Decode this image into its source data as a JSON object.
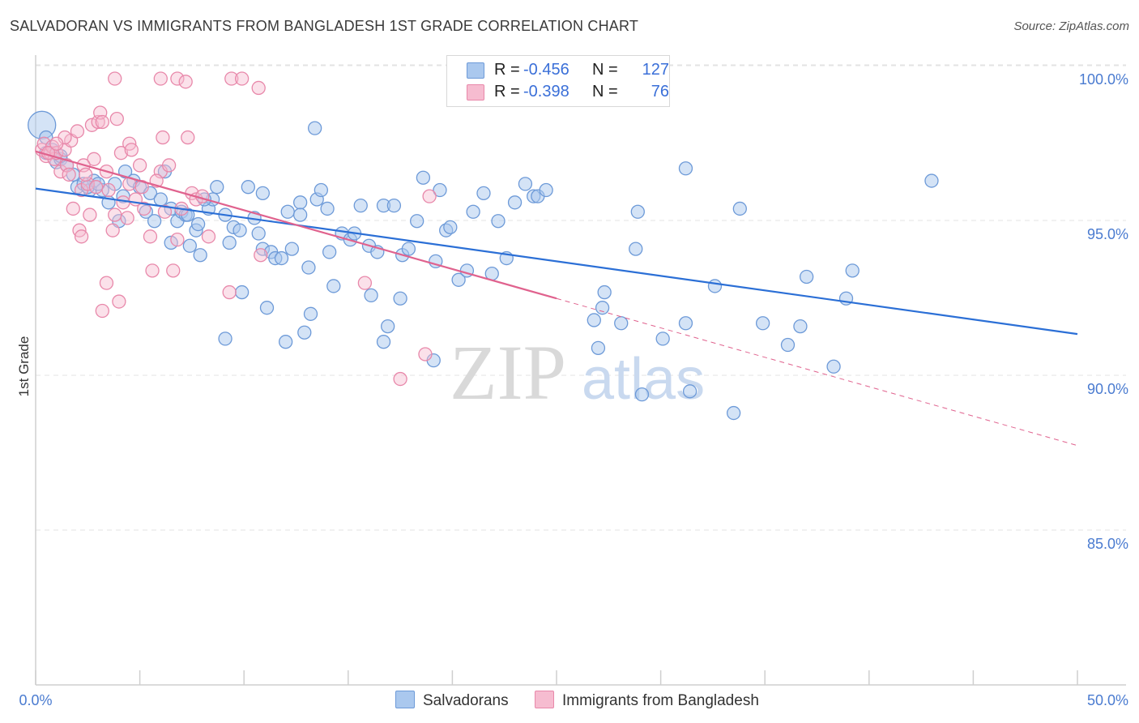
{
  "title": "SALVADORAN VS IMMIGRANTS FROM BANGLADESH 1ST GRADE CORRELATION CHART",
  "source": "Source: ZipAtlas.com",
  "watermark": {
    "part1": "ZIP",
    "part2": "atlas"
  },
  "legend": {
    "rows": [
      {
        "r_label": "R =",
        "r_value": "-0.456",
        "n_label": "N =",
        "n_value": "127"
      },
      {
        "r_label": "R =",
        "r_value": "-0.398",
        "n_label": "N =",
        "n_value": "76"
      }
    ]
  },
  "bottom_legend": {
    "series1": "Salvadorans",
    "series2": "Immigrants from Bangladesh"
  },
  "colors": {
    "blue_fill": "#aac8ee",
    "blue_stroke": "#6d9ad8",
    "blue_line": "#2b6fd6",
    "pink_fill": "#f6bcd0",
    "pink_stroke": "#e888aa",
    "pink_line": "#e0628e",
    "tick_text": "#4a7bd0",
    "grid": "#e3e3e3"
  },
  "chart_data": {
    "type": "scatter",
    "title": "SALVADORAN VS IMMIGRANTS FROM BANGLADESH 1ST GRADE CORRELATION CHART",
    "xlabel": "",
    "ylabel": "1st Grade",
    "xlim": [
      0,
      50
    ],
    "ylim": [
      80.5,
      101
    ],
    "x_tick_labels": [
      "0.0%",
      "50.0%"
    ],
    "y_ticks": [
      85,
      90,
      95,
      100
    ],
    "y_tick_labels": [
      "85.0%",
      "90.0%",
      "95.0%",
      "100.0%"
    ],
    "grid": true,
    "series": [
      {
        "name": "Salvadorans",
        "r": -0.456,
        "n": 127,
        "trend": {
          "x": [
            0,
            50
          ],
          "y": [
            96.45,
            91.75
          ]
        },
        "points": [
          [
            0.3,
            98.5
          ],
          [
            0.5,
            98.1
          ],
          [
            0.8,
            97.7
          ],
          [
            1.0,
            97.3
          ],
          [
            1.2,
            97.4
          ],
          [
            1.5,
            97.2
          ],
          [
            1.8,
            96.9
          ],
          [
            2.0,
            96.5
          ],
          [
            2.3,
            96.6
          ],
          [
            2.6,
            96.4
          ],
          [
            2.8,
            96.7
          ],
          [
            3.2,
            96.4
          ],
          [
            3.5,
            96.0
          ],
          [
            3.8,
            96.6
          ],
          [
            4.0,
            95.4
          ],
          [
            4.2,
            96.2
          ],
          [
            4.3,
            97.0
          ],
          [
            4.7,
            96.7
          ],
          [
            5.0,
            96.5
          ],
          [
            5.3,
            95.7
          ],
          [
            5.5,
            96.3
          ],
          [
            5.7,
            95.4
          ],
          [
            6.0,
            96.1
          ],
          [
            6.2,
            97.0
          ],
          [
            6.5,
            94.7
          ],
          [
            6.5,
            95.8
          ],
          [
            6.8,
            95.4
          ],
          [
            7.0,
            95.7
          ],
          [
            7.2,
            95.6
          ],
          [
            7.4,
            94.6
          ],
          [
            7.7,
            95.1
          ],
          [
            7.8,
            95.3
          ],
          [
            7.9,
            94.3
          ],
          [
            8.3,
            95.8
          ],
          [
            8.5,
            96.1
          ],
          [
            8.7,
            96.5
          ],
          [
            9.1,
            95.6
          ],
          [
            9.3,
            94.7
          ],
          [
            9.5,
            95.2
          ],
          [
            9.8,
            95.1
          ],
          [
            10.2,
            96.5
          ],
          [
            10.5,
            95.5
          ],
          [
            10.7,
            95.0
          ],
          [
            10.9,
            94.5
          ],
          [
            11.3,
            94.4
          ],
          [
            11.5,
            94.2
          ],
          [
            11.8,
            94.2
          ],
          [
            12.1,
            95.7
          ],
          [
            12.3,
            94.5
          ],
          [
            12.7,
            96.0
          ],
          [
            13.1,
            93.9
          ],
          [
            13.5,
            96.1
          ],
          [
            13.7,
            96.4
          ],
          [
            14.0,
            95.8
          ],
          [
            14.3,
            93.3
          ],
          [
            14.7,
            95.0
          ],
          [
            15.1,
            94.8
          ],
          [
            15.6,
            95.9
          ],
          [
            16.0,
            94.6
          ],
          [
            16.4,
            94.4
          ],
          [
            16.7,
            95.9
          ],
          [
            17.2,
            95.9
          ],
          [
            17.6,
            94.3
          ],
          [
            17.9,
            94.5
          ],
          [
            18.3,
            95.4
          ],
          [
            18.6,
            96.8
          ],
          [
            19.2,
            94.1
          ],
          [
            19.4,
            96.4
          ],
          [
            19.7,
            95.1
          ],
          [
            19.9,
            95.2
          ],
          [
            20.3,
            93.5
          ],
          [
            20.7,
            93.8
          ],
          [
            21.0,
            95.7
          ],
          [
            21.5,
            96.3
          ],
          [
            21.9,
            93.7
          ],
          [
            22.2,
            95.4
          ],
          [
            22.6,
            94.2
          ],
          [
            23.0,
            96.0
          ],
          [
            23.5,
            96.6
          ],
          [
            23.9,
            96.2
          ],
          [
            24.1,
            96.2
          ],
          [
            24.5,
            96.4
          ],
          [
            0.5,
            97.6
          ],
          [
            1.2,
            97.5
          ],
          [
            2.5,
            96.5
          ],
          [
            3.0,
            96.6
          ],
          [
            27.3,
            93.1
          ],
          [
            26.8,
            92.2
          ],
          [
            27.2,
            92.6
          ],
          [
            28.1,
            92.1
          ],
          [
            27.0,
            91.3
          ],
          [
            28.8,
            94.5
          ],
          [
            28.9,
            95.7
          ],
          [
            29.1,
            89.8
          ],
          [
            30.1,
            91.6
          ],
          [
            31.2,
            97.1
          ],
          [
            31.4,
            89.9
          ],
          [
            31.2,
            92.1
          ],
          [
            32.6,
            93.3
          ],
          [
            33.8,
            95.8
          ],
          [
            33.5,
            89.2
          ],
          [
            34.9,
            92.1
          ],
          [
            36.1,
            91.4
          ],
          [
            36.7,
            92.0
          ],
          [
            37.0,
            93.6
          ],
          [
            38.3,
            90.7
          ],
          [
            38.9,
            92.9
          ],
          [
            39.2,
            93.8
          ],
          [
            43.0,
            96.7
          ],
          [
            12.7,
            95.6
          ],
          [
            13.4,
            98.4
          ],
          [
            14.1,
            94.4
          ],
          [
            15.3,
            95.0
          ],
          [
            10.9,
            96.3
          ],
          [
            9.9,
            93.1
          ],
          [
            11.1,
            92.6
          ],
          [
            12.0,
            91.5
          ],
          [
            12.9,
            91.8
          ],
          [
            13.2,
            92.4
          ],
          [
            16.1,
            93.0
          ],
          [
            16.9,
            92.0
          ],
          [
            16.7,
            91.5
          ],
          [
            17.5,
            92.9
          ],
          [
            19.1,
            90.9
          ],
          [
            9.1,
            91.6
          ],
          [
            8.1,
            96.1
          ],
          [
            7.3,
            95.6
          ]
        ]
      },
      {
        "name": "Immigrants from Bangladesh",
        "r": -0.398,
        "n": 76,
        "trend": {
          "x": [
            0,
            25
          ],
          "y": [
            97.65,
            92.9
          ]
        },
        "trend_dashed": {
          "x": [
            25,
            50
          ],
          "y": [
            92.9,
            88.15
          ]
        },
        "points": [
          [
            0.3,
            97.7
          ],
          [
            0.4,
            97.9
          ],
          [
            0.5,
            97.5
          ],
          [
            0.7,
            97.6
          ],
          [
            0.8,
            97.8
          ],
          [
            0.9,
            97.4
          ],
          [
            1.0,
            97.6
          ],
          [
            1.2,
            97.0
          ],
          [
            1.4,
            97.7
          ],
          [
            1.5,
            97.2
          ],
          [
            1.7,
            98.0
          ],
          [
            2.0,
            98.3
          ],
          [
            2.2,
            96.4
          ],
          [
            2.5,
            96.6
          ],
          [
            2.6,
            95.6
          ],
          [
            2.7,
            98.5
          ],
          [
            2.9,
            96.5
          ],
          [
            3.0,
            98.6
          ],
          [
            3.1,
            98.9
          ],
          [
            3.2,
            98.6
          ],
          [
            3.4,
            97.0
          ],
          [
            3.5,
            96.4
          ],
          [
            3.7,
            95.1
          ],
          [
            3.8,
            95.6
          ],
          [
            3.9,
            98.7
          ],
          [
            4.1,
            97.6
          ],
          [
            4.2,
            96.0
          ],
          [
            4.4,
            95.5
          ],
          [
            4.5,
            97.9
          ],
          [
            4.6,
            97.7
          ],
          [
            4.8,
            96.1
          ],
          [
            5.0,
            97.2
          ],
          [
            5.2,
            95.8
          ],
          [
            5.5,
            94.9
          ],
          [
            5.6,
            93.8
          ],
          [
            6.0,
            97.0
          ],
          [
            6.1,
            98.1
          ],
          [
            6.2,
            95.7
          ],
          [
            6.4,
            97.2
          ],
          [
            6.6,
            93.8
          ],
          [
            6.8,
            94.8
          ],
          [
            7.0,
            95.8
          ],
          [
            7.3,
            98.1
          ],
          [
            7.5,
            96.3
          ],
          [
            7.7,
            96.1
          ],
          [
            8.3,
            94.9
          ],
          [
            9.3,
            93.1
          ],
          [
            10.8,
            94.3
          ],
          [
            15.8,
            93.4
          ],
          [
            17.5,
            90.3
          ],
          [
            18.7,
            91.1
          ],
          [
            18.9,
            96.2
          ],
          [
            1.8,
            95.8
          ],
          [
            2.1,
            95.1
          ],
          [
            2.2,
            94.9
          ],
          [
            3.2,
            92.5
          ],
          [
            3.4,
            93.4
          ],
          [
            4.0,
            92.8
          ],
          [
            3.8,
            100.0
          ],
          [
            6.0,
            100.0
          ],
          [
            6.8,
            100.0
          ],
          [
            7.2,
            99.9
          ],
          [
            9.4,
            100.0
          ],
          [
            9.9,
            100.0
          ],
          [
            10.7,
            99.7
          ],
          [
            1.4,
            98.1
          ],
          [
            2.8,
            97.4
          ],
          [
            2.3,
            97.2
          ],
          [
            5.1,
            96.5
          ],
          [
            8.0,
            96.2
          ],
          [
            4.5,
            96.6
          ],
          [
            1.6,
            96.9
          ],
          [
            0.6,
            97.6
          ],
          [
            1.0,
            97.9
          ],
          [
            2.4,
            96.9
          ],
          [
            5.8,
            96.7
          ]
        ]
      }
    ]
  }
}
